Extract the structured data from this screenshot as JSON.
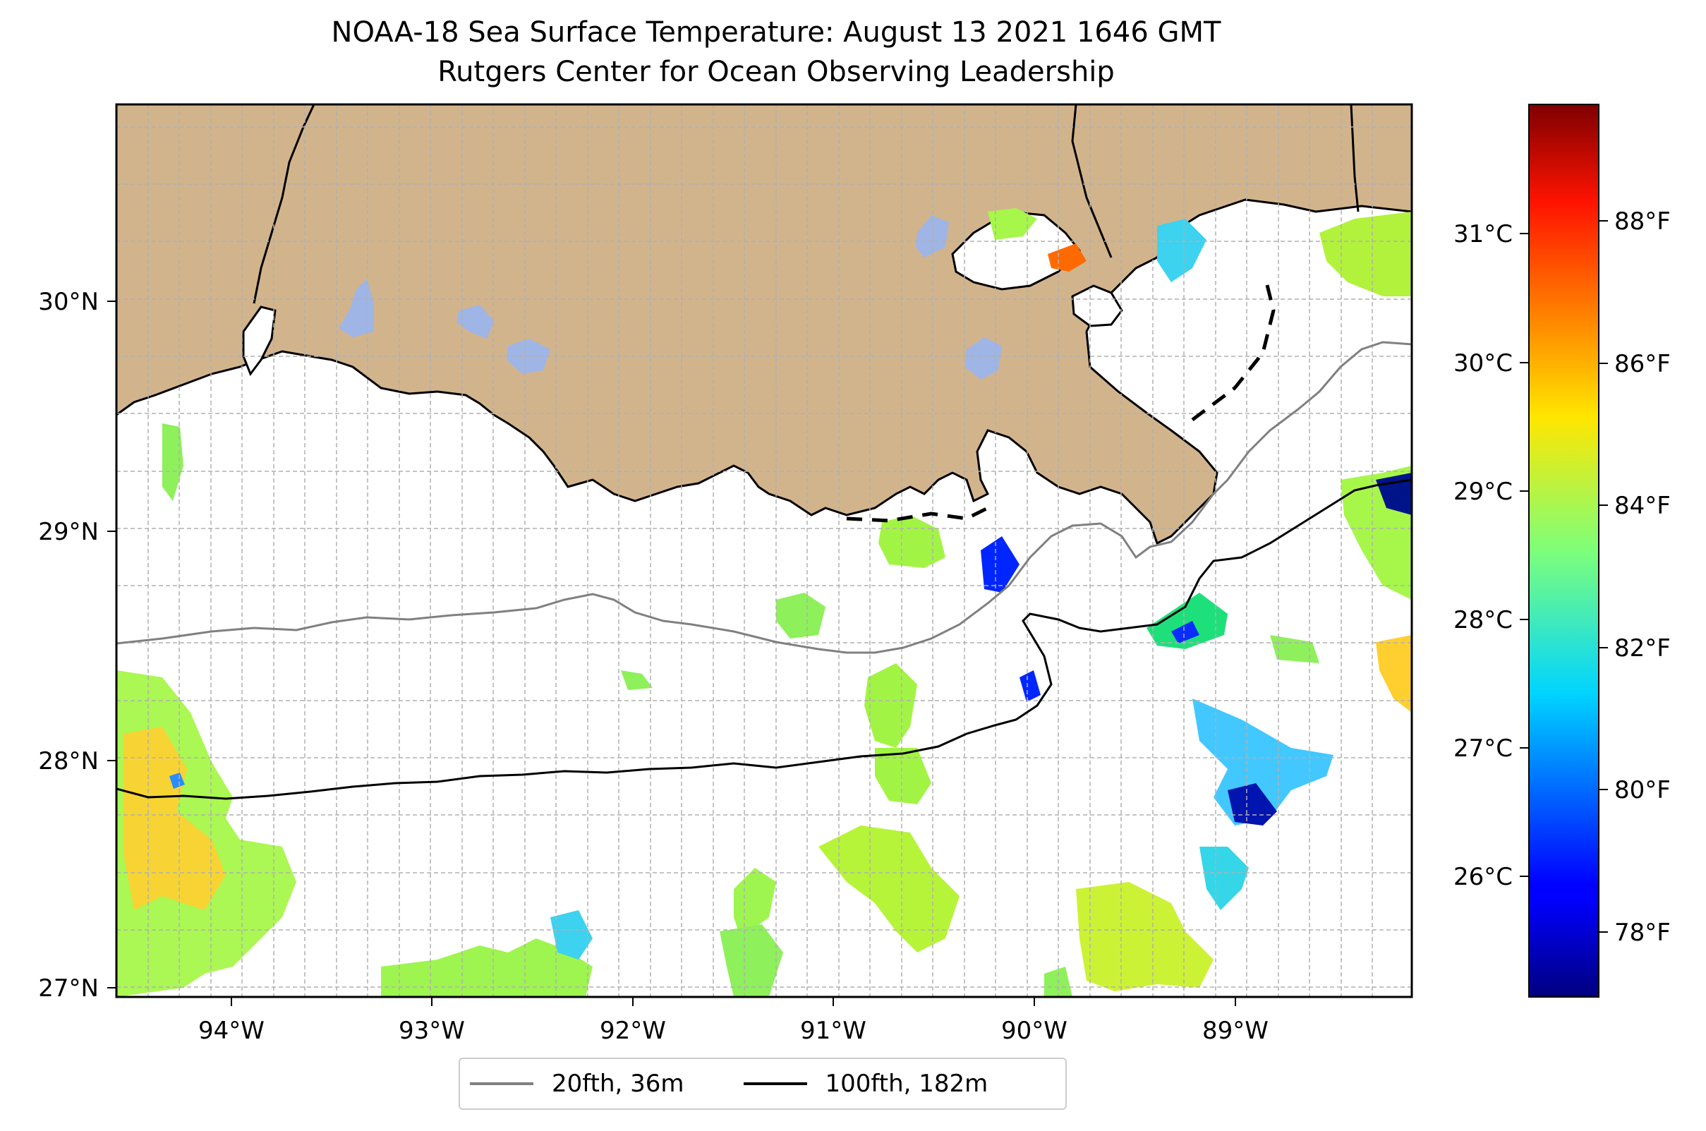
{
  "title": {
    "line1": "NOAA-18 Sea Surface Temperature: August 13 2021 1646 GMT",
    "line2": "Rutgers Center for Ocean Observing Leadership"
  },
  "map": {
    "lon_ticks": [
      "94°W",
      "93°W",
      "92°W",
      "91°W",
      "90°W",
      "89°W"
    ],
    "lat_ticks": [
      "30°N",
      "29°N",
      "28°N",
      "27°N"
    ],
    "colors": {
      "land": "#d2b48c",
      "lake": "#9eb5e6",
      "ocean": "#ffffff",
      "grid": "#b0b0b0"
    }
  },
  "colorbar": {
    "celsius_ticks": [
      "31°C",
      "30°C",
      "29°C",
      "28°C",
      "27°C",
      "26°C"
    ],
    "fahrenheit_ticks": [
      "88°F",
      "86°F",
      "84°F",
      "82°F",
      "80°F",
      "78°F"
    ],
    "colormap": "jet"
  },
  "legend": {
    "items": [
      {
        "label": "20fth, 36m",
        "color": "#808080"
      },
      {
        "label": "100fth, 182m",
        "color": "#000000"
      }
    ]
  }
}
